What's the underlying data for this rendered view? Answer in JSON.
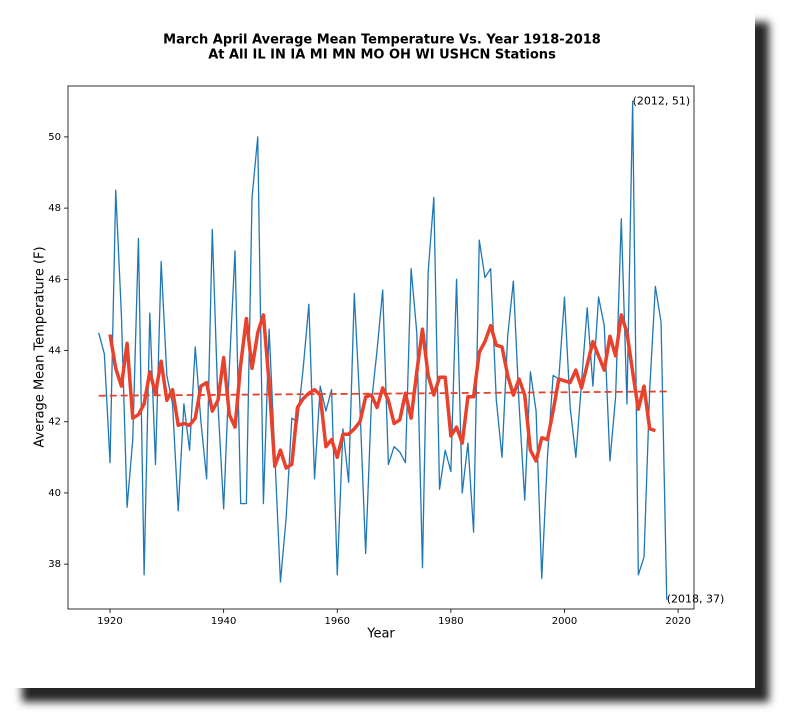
{
  "chart_data": {
    "type": "line",
    "title": "March April Average Mean Temperature Vs. Year 1918-2018",
    "subtitle": "At All IL IN IA MI MN MO OH WI USHCN Stations",
    "x_label": "Year",
    "y_label": "Average Mean Temperature (F)",
    "xlim": [
      1912.6,
      2022.8
    ],
    "ylim": [
      36.74,
      51.43
    ],
    "xticks": [
      1920,
      1940,
      1960,
      1980,
      2000,
      2020
    ],
    "yticks": [
      38,
      40,
      42,
      44,
      46,
      48,
      50
    ],
    "grid": false,
    "series": [
      {
        "color": "#1f77b4",
        "linestyle": "solid",
        "x": [
          1918,
          1919,
          1920,
          1921,
          1922,
          1923,
          1924,
          1925,
          1926,
          1927,
          1928,
          1929,
          1930,
          1931,
          1932,
          1933,
          1934,
          1935,
          1936,
          1937,
          1938,
          1939,
          1940,
          1941,
          1942,
          1943,
          1944,
          1945,
          1946,
          1947,
          1948,
          1949,
          1950,
          1951,
          1952,
          1953,
          1954,
          1955,
          1956,
          1957,
          1958,
          1959,
          1960,
          1961,
          1962,
          1963,
          1964,
          1965,
          1966,
          1967,
          1968,
          1969,
          1970,
          1971,
          1972,
          1973,
          1974,
          1975,
          1976,
          1977,
          1978,
          1979,
          1980,
          1981,
          1982,
          1983,
          1984,
          1985,
          1986,
          1987,
          1988,
          1989,
          1990,
          1991,
          1992,
          1993,
          1994,
          1995,
          1996,
          1997,
          1998,
          1999,
          2000,
          2001,
          2002,
          2003,
          2004,
          2005,
          2006,
          2007,
          2008,
          2009,
          2010,
          2011,
          2012,
          2013,
          2014,
          2015,
          2016,
          2017,
          2018
        ],
        "values": [
          44.5,
          43.9,
          40.85,
          48.5,
          45.0,
          39.6,
          41.5,
          47.15,
          37.7,
          45.05,
          40.8,
          46.5,
          43.3,
          42.5,
          39.5,
          42.5,
          41.2,
          44.1,
          42.0,
          40.4,
          47.4,
          42.5,
          39.55,
          43.5,
          46.8,
          39.7,
          39.7,
          48.3,
          50.0,
          39.7,
          44.6,
          41.1,
          37.5,
          39.3,
          42.1,
          42.0,
          43.5,
          45.3,
          40.4,
          43.0,
          42.3,
          42.9,
          37.7,
          41.8,
          40.3,
          45.6,
          42.4,
          38.3,
          42.5,
          44.0,
          45.7,
          40.8,
          41.3,
          41.15,
          40.85,
          46.3,
          44.5,
          37.9,
          46.2,
          48.3,
          40.1,
          41.2,
          40.6,
          46.0,
          40.0,
          41.4,
          38.9,
          47.1,
          46.05,
          46.3,
          42.6,
          41.0,
          44.4,
          45.95,
          42.5,
          39.8,
          43.4,
          42.3,
          37.6,
          41.0,
          43.3,
          43.2,
          45.5,
          42.4,
          41.0,
          43.1,
          45.2,
          43.0,
          45.5,
          44.7,
          40.9,
          42.7,
          47.7,
          42.5,
          51.0,
          37.7,
          38.2,
          42.9,
          45.8,
          44.8,
          37.0
        ]
      },
      {
        "color": "#e8412c",
        "linestyle": "solid",
        "x": [
          1920,
          1921,
          1922,
          1923,
          1924,
          1925,
          1926,
          1927,
          1928,
          1929,
          1930,
          1931,
          1932,
          1933,
          1934,
          1935,
          1936,
          1937,
          1938,
          1939,
          1940,
          1941,
          1942,
          1943,
          1944,
          1945,
          1946,
          1947,
          1948,
          1949,
          1950,
          1951,
          1952,
          1953,
          1954,
          1955,
          1956,
          1957,
          1958,
          1959,
          1960,
          1961,
          1962,
          1963,
          1964,
          1965,
          1966,
          1967,
          1968,
          1969,
          1970,
          1971,
          1972,
          1973,
          1974,
          1975,
          1976,
          1977,
          1978,
          1979,
          1980,
          1981,
          1982,
          1983,
          1984,
          1985,
          1986,
          1987,
          1988,
          1989,
          1990,
          1991,
          1992,
          1993,
          1994,
          1995,
          1996,
          1997,
          1998,
          1999,
          2000,
          2001,
          2002,
          2003,
          2004,
          2005,
          2006,
          2007,
          2008,
          2009,
          2010,
          2011,
          2012,
          2013,
          2014,
          2015,
          2016
        ],
        "values": [
          44.45,
          43.5,
          43.0,
          44.2,
          42.1,
          42.2,
          42.5,
          43.4,
          42.8,
          43.7,
          42.6,
          42.9,
          41.9,
          41.95,
          41.9,
          42.1,
          43.0,
          43.1,
          42.3,
          42.6,
          43.8,
          42.2,
          41.85,
          43.6,
          44.9,
          43.5,
          44.5,
          45.0,
          43.1,
          40.75,
          41.2,
          40.7,
          40.8,
          42.4,
          42.65,
          42.8,
          42.9,
          42.75,
          41.3,
          41.5,
          41.0,
          41.65,
          41.65,
          41.8,
          42.0,
          42.7,
          42.75,
          42.4,
          42.95,
          42.6,
          41.95,
          42.05,
          42.8,
          42.1,
          43.4,
          44.6,
          43.3,
          42.75,
          43.25,
          43.25,
          41.6,
          41.85,
          41.4,
          42.7,
          42.7,
          43.95,
          44.25,
          44.7,
          44.15,
          44.1,
          43.3,
          42.75,
          43.2,
          42.75,
          41.2,
          40.9,
          41.55,
          41.5,
          42.3,
          43.2,
          43.15,
          43.1,
          43.45,
          42.95,
          43.6,
          44.25,
          43.85,
          43.45,
          44.4,
          43.85,
          45.0,
          44.5,
          43.4,
          42.35,
          43.0,
          41.8,
          41.75
        ]
      },
      {
        "color": "#e8412c",
        "linestyle": "dashed",
        "x": [
          1918,
          2018
        ],
        "values": [
          42.73,
          42.85
        ]
      }
    ],
    "annotations": [
      {
        "text": "(2012, 51)",
        "x": 2012,
        "y": 51
      },
      {
        "text": "(2018, 37)",
        "x": 2018,
        "y": 37
      }
    ]
  }
}
